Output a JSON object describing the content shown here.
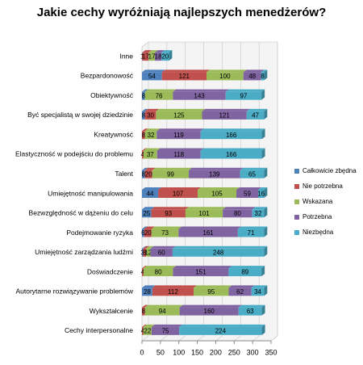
{
  "chart_data": {
    "type": "stacked-bar-horizontal",
    "title": "Jakie cechy wyróżniają najlepszych menedżerów?",
    "categories": [
      "Inne",
      "Bezpardonowość",
      "Obiektywność",
      "Być specjalistą w swojej dziedzinie",
      "Kreatywność",
      "Elastyczność w podejściu do problemu",
      "Talent",
      "Umiejętność manipulowania",
      "Bezwzględność w dążeniu do celu",
      "Podejmowanie ryzyka",
      "Umiejętność zarządzania ludźmi",
      "Doświadczenie",
      "Autorytarne rozwiązywanie problemów",
      "Wykształcenie",
      "Cechy interpersonalne"
    ],
    "series": [
      {
        "name": "Całkowicie zbędna",
        "color": "#4f81bd",
        "values": [
          1,
          54,
          8,
          8,
          null,
          null,
          8,
          44,
          25,
          6,
          3,
          null,
          28,
          null,
          null
        ]
      },
      {
        "name": "Nie potrzebna",
        "color": "#c0504d",
        "values": [
          17,
          121,
          null,
          30,
          8,
          4,
          20,
          107,
          93,
          20,
          8,
          4,
          112,
          8,
          4
        ]
      },
      {
        "name": "Wskazana",
        "color": "#9bbb59",
        "values": [
          17,
          100,
          76,
          125,
          32,
          37,
          99,
          105,
          101,
          73,
          12,
          80,
          95,
          94,
          22
        ]
      },
      {
        "name": "Potrzebna",
        "color": "#8064a2",
        "values": [
          18,
          48,
          143,
          121,
          119,
          118,
          139,
          59,
          80,
          161,
          60,
          151,
          62,
          160,
          75
        ]
      },
      {
        "name": "Niezbędna",
        "color": "#4bacc6",
        "values": [
          20,
          8,
          97,
          47,
          166,
          166,
          65,
          16,
          32,
          71,
          248,
          89,
          34,
          63,
          224
        ]
      }
    ],
    "xlim": [
      0,
      350
    ],
    "xticks": [
      0,
      50,
      100,
      150,
      200,
      250,
      300,
      350
    ],
    "grid": true,
    "legend": "right"
  }
}
